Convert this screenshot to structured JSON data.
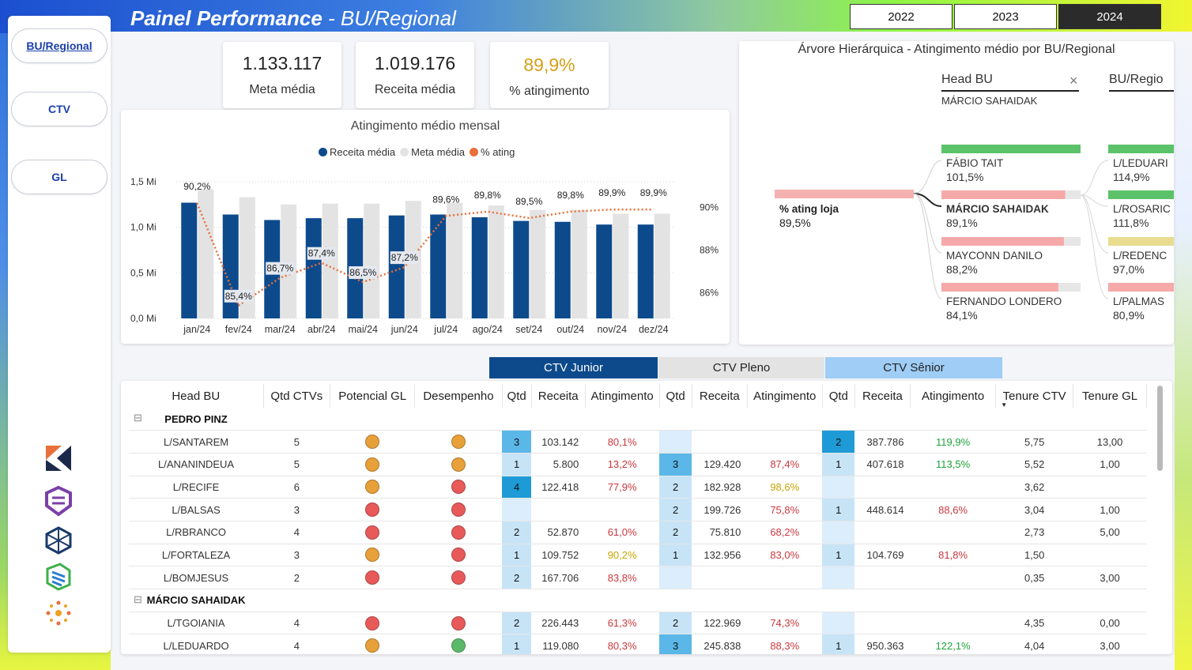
{
  "header": {
    "title_main": "Painel Performance",
    "title_sub": " - BU/Regional",
    "years": [
      "2022",
      "2023",
      "2024"
    ],
    "selected_year": "2024"
  },
  "sidebar": {
    "items": [
      {
        "label": "BU/Regional",
        "active": true
      },
      {
        "label": "CTV",
        "active": false
      },
      {
        "label": "GL",
        "active": false
      }
    ],
    "logos": [
      "k-logo-icon",
      "shield-logo-icon",
      "cube-logo-icon",
      "layers-logo-icon",
      "sun-logo-icon"
    ]
  },
  "kpis": [
    {
      "value": "1.133.117",
      "label": "Meta média",
      "color": "#222222"
    },
    {
      "value": "1.019.176",
      "label": "Receita média",
      "color": "#222222"
    },
    {
      "value": "89,9%",
      "label": "% atingimento",
      "color": "#d4a017"
    }
  ],
  "chart_data": {
    "type": "bar",
    "title": "Atingimento médio mensal",
    "categories": [
      "jan/24",
      "fev/24",
      "mar/24",
      "abr/24",
      "mai/24",
      "jun/24",
      "jul/24",
      "ago/24",
      "set/24",
      "out/24",
      "nov/24",
      "dez/24"
    ],
    "series": [
      {
        "name": "Receita média",
        "color": "#0d4a8c",
        "values": [
          1.27,
          1.14,
          1.08,
          1.1,
          1.1,
          1.13,
          1.14,
          1.11,
          1.07,
          1.06,
          1.03,
          1.03
        ]
      },
      {
        "name": "Meta média",
        "color": "#e3e3e3",
        "values": [
          1.42,
          1.33,
          1.25,
          1.26,
          1.26,
          1.29,
          1.27,
          1.24,
          1.19,
          1.19,
          1.15,
          1.15
        ]
      },
      {
        "name": "% ating",
        "color": "#e8703a",
        "type": "line",
        "values": [
          90.2,
          85.4,
          86.7,
          87.4,
          86.5,
          87.2,
          89.6,
          89.8,
          89.5,
          89.8,
          89.9,
          89.9
        ]
      }
    ],
    "line_labels": [
      "90,2%",
      "85,4%",
      "86,7%",
      "87,4%",
      "86,5%",
      "87,2%",
      "89,6%",
      "89,8%",
      "89,5%",
      "89,8%",
      "89,9%",
      "89,9%"
    ],
    "y_ticks": [
      "0,0 Mi",
      "0,5 Mi",
      "1,0 Mi",
      "1,5 Mi"
    ],
    "y2_ticks": [
      "86%",
      "88%",
      "90%"
    ],
    "ylim": [
      0,
      1.5
    ],
    "y2lim": [
      84.8,
      91.2
    ]
  },
  "tree": {
    "title": "Árvore Hierárquica - Atingimento médio por BU/Regional",
    "level1_header": "Head BU",
    "level1_filter": "MÁRCIO SAHAIDAK",
    "level2_header": "BU/Regio",
    "root": {
      "label": "% ating loja",
      "value": "89,5%"
    },
    "level1": [
      {
        "name": "FÁBIO TAIT",
        "value": "101,5%",
        "color": "#5cc26a",
        "fill": 1.0,
        "bold": false
      },
      {
        "name": "MÁRCIO SAHAIDAK",
        "value": "89,1%",
        "color": "#f5a9a9",
        "fill": 0.89,
        "bold": true
      },
      {
        "name": "MAYCONN DANILO",
        "value": "88,2%",
        "color": "#f5a9a9",
        "fill": 0.88,
        "bold": false
      },
      {
        "name": "FERNANDO LONDERO",
        "value": "84,1%",
        "color": "#f5a9a9",
        "fill": 0.84,
        "bold": false
      }
    ],
    "level2": [
      {
        "name": "L/LEDUARI",
        "value": "114,9%",
        "color": "#5cc26a"
      },
      {
        "name": "L/ROSARIC",
        "value": "111,8%",
        "color": "#5cc26a"
      },
      {
        "name": "L/REDENC",
        "value": "97,0%",
        "color": "#e8dc90"
      },
      {
        "name": "L/PALMAS",
        "value": "80,9%",
        "color": "#f5a9a9"
      }
    ]
  },
  "table": {
    "groups": [
      "CTV Junior",
      "CTV Pleno",
      "CTV Sênior"
    ],
    "columns": [
      "Head BU",
      "Qtd CTVs",
      "Potencial GL",
      "Desempenho",
      "Qtd",
      "Receita",
      "Atingimento",
      "Qtd",
      "Receita",
      "Atingimento",
      "Qtd",
      "Receita",
      "Atingimento",
      "Tenure CTV",
      "Tenure GL"
    ],
    "rows": [
      {
        "type": "group",
        "name": "PEDRO PINZ"
      },
      {
        "type": "row",
        "name": "L/SANTAREM",
        "qtd": "5",
        "pot": "orange",
        "des": "orange",
        "jq": "3",
        "jqc": "q-mid",
        "jr": "103.142",
        "ja": "80,1%",
        "jac": "red",
        "pq": "",
        "pqc": "q-empty",
        "pr": "",
        "pa": "",
        "pac": "",
        "sq": "2",
        "sqc": "q-dark",
        "sr": "387.786",
        "sa": "119,9%",
        "sac": "green",
        "tc": "5,75",
        "tg": "13,00"
      },
      {
        "type": "row",
        "name": "L/ANANINDEUA",
        "qtd": "5",
        "pot": "orange",
        "des": "orange",
        "jq": "1",
        "jqc": "q-light",
        "jr": "5.800",
        "ja": "13,2%",
        "jac": "red",
        "pq": "3",
        "pqc": "q-mid",
        "pr": "129.420",
        "pa": "87,4%",
        "pac": "red",
        "sq": "1",
        "sqc": "q-light",
        "sr": "407.618",
        "sa": "113,5%",
        "sac": "green",
        "tc": "5,52",
        "tg": "1,00"
      },
      {
        "type": "row",
        "name": "L/RECIFE",
        "qtd": "6",
        "pot": "orange",
        "des": "red",
        "jq": "4",
        "jqc": "q-dark",
        "jr": "122.418",
        "ja": "77,9%",
        "jac": "red",
        "pq": "2",
        "pqc": "q-light",
        "pr": "182.928",
        "pa": "98,6%",
        "pac": "yellow",
        "sq": "",
        "sqc": "q-empty",
        "sr": "",
        "sa": "",
        "sac": "",
        "tc": "3,62",
        "tg": ""
      },
      {
        "type": "row",
        "name": "L/BALSAS",
        "qtd": "3",
        "pot": "red",
        "des": "red",
        "jq": "",
        "jqc": "q-empty",
        "jr": "",
        "ja": "",
        "jac": "",
        "pq": "2",
        "pqc": "q-light",
        "pr": "199.726",
        "pa": "75,8%",
        "pac": "red",
        "sq": "1",
        "sqc": "q-light",
        "sr": "448.614",
        "sa": "88,6%",
        "sac": "red",
        "tc": "3,04",
        "tg": "1,00"
      },
      {
        "type": "row",
        "name": "L/RBRANCO",
        "qtd": "4",
        "pot": "red",
        "des": "red",
        "jq": "2",
        "jqc": "q-light",
        "jr": "52.870",
        "ja": "61,0%",
        "jac": "red",
        "pq": "2",
        "pqc": "q-light",
        "pr": "75.810",
        "pa": "68,2%",
        "pac": "red",
        "sq": "",
        "sqc": "q-empty",
        "sr": "",
        "sa": "",
        "sac": "",
        "tc": "2,73",
        "tg": "5,00"
      },
      {
        "type": "row",
        "name": "L/FORTALEZA",
        "qtd": "3",
        "pot": "orange",
        "des": "red",
        "jq": "1",
        "jqc": "q-light",
        "jr": "109.752",
        "ja": "90,2%",
        "jac": "yellow",
        "pq": "1",
        "pqc": "q-light",
        "pr": "132.956",
        "pa": "83,0%",
        "pac": "red",
        "sq": "1",
        "sqc": "q-light",
        "sr": "104.769",
        "sa": "81,8%",
        "sac": "red",
        "tc": "1,50",
        "tg": ""
      },
      {
        "type": "row",
        "name": "L/BOMJESUS",
        "qtd": "2",
        "pot": "red",
        "des": "red",
        "jq": "2",
        "jqc": "q-light",
        "jr": "167.706",
        "ja": "83,8%",
        "jac": "red",
        "pq": "",
        "pqc": "q-empty",
        "pr": "",
        "pa": "",
        "pac": "",
        "sq": "",
        "sqc": "q-empty",
        "sr": "",
        "sa": "",
        "sac": "",
        "tc": "0,35",
        "tg": "3,00"
      },
      {
        "type": "group",
        "name": "MÁRCIO SAHAIDAK"
      },
      {
        "type": "row",
        "name": "L/TGOIANIA",
        "qtd": "4",
        "pot": "red",
        "des": "red",
        "jq": "2",
        "jqc": "q-light",
        "jr": "226.443",
        "ja": "61,3%",
        "jac": "red",
        "pq": "2",
        "pqc": "q-light",
        "pr": "122.969",
        "pa": "74,3%",
        "pac": "red",
        "sq": "",
        "sqc": "q-empty",
        "sr": "",
        "sa": "",
        "sac": "",
        "tc": "4,35",
        "tg": "0,00"
      },
      {
        "type": "row",
        "name": "L/LEDUARDO",
        "qtd": "4",
        "pot": "orange",
        "des": "green",
        "jq": "1",
        "jqc": "q-light",
        "jr": "119.080",
        "ja": "80,3%",
        "jac": "red",
        "pq": "3",
        "pqc": "q-mid",
        "pr": "245.838",
        "pa": "88,3%",
        "pac": "red",
        "sq": "1",
        "sqc": "q-light",
        "sr": "950.363",
        "sa": "122,1%",
        "sac": "green",
        "tc": "4,04",
        "tg": "3,00"
      }
    ]
  }
}
